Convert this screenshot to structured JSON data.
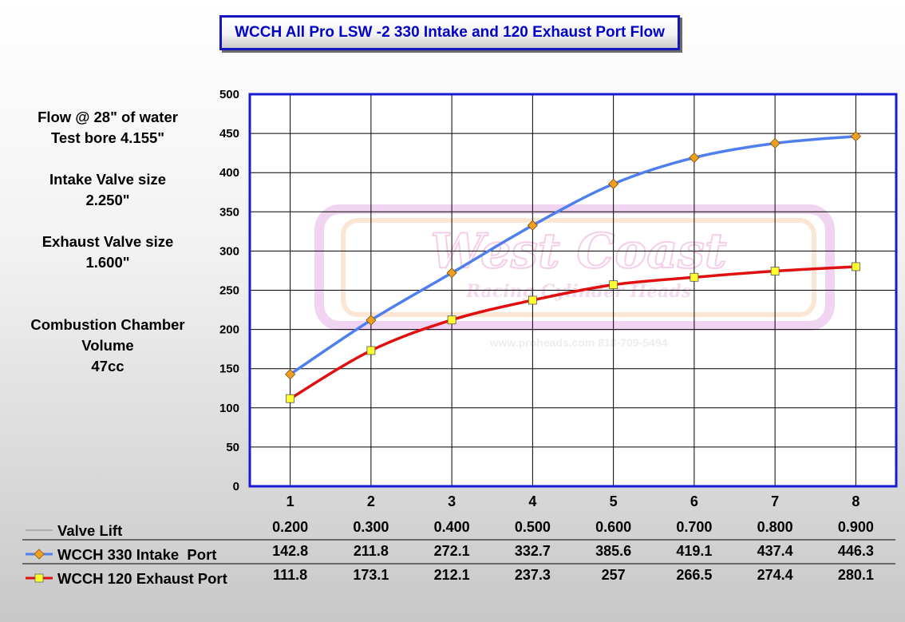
{
  "chart_data": {
    "type": "line",
    "title": "WCCH All Pro LSW -2 330 Intake and 120 Exhaust Port Flow",
    "categories": [
      "1",
      "2",
      "3",
      "4",
      "5",
      "6",
      "7",
      "8"
    ],
    "ylim": [
      0,
      500
    ],
    "yticks": [
      "500",
      "450",
      "400",
      "350",
      "300",
      "250",
      "200",
      "150",
      "100",
      "50",
      "0"
    ],
    "grid": true,
    "legend": "bottom-left (data table)",
    "table": {
      "lift_label": "Valve Lift",
      "lift_values": [
        "0.200",
        "0.300",
        "0.400",
        "0.500",
        "0.600",
        "0.700",
        "0.800",
        "0.900"
      ]
    },
    "series": [
      {
        "name": "WCCH 330 Intake  Port",
        "values": [
          142.8,
          211.8,
          272.1,
          332.7,
          385.6,
          419.1,
          437.4,
          446.3
        ],
        "display_values": [
          "142.8",
          "211.8",
          "272.1",
          "332.7",
          "385.6",
          "419.1",
          "437.4",
          "446.3"
        ],
        "color": "#4f7fef",
        "marker": "diamond",
        "marker_color": "#f0a020"
      },
      {
        "name": "WCCH 120 Exhaust Port",
        "values": [
          111.8,
          173.1,
          212.1,
          237.3,
          257,
          266.5,
          274.4,
          280.1
        ],
        "display_values": [
          "111.8",
          "173.1",
          "212.1",
          "237.3",
          "257",
          "266.5",
          "274.4",
          "280.1"
        ],
        "color": "#e01010",
        "marker": "square",
        "marker_color": "#ffff30"
      }
    ],
    "plot_border_color": "#1a1ad6"
  },
  "info": {
    "line1": "Flow @ 28\" of water",
    "line2": "Test bore 4.155\"",
    "line3": "Intake Valve size",
    "line4": "2.250\"",
    "line5": "Exhaust Valve size",
    "line6": "1.600\"",
    "line7": "Combustion Chamber",
    "line8": "Volume",
    "line9": "47cc"
  },
  "watermark": {
    "line1": "West Coast",
    "line2": "Racing Cylinder Heads",
    "line3": "www.proheads.com 818-709-5494"
  }
}
